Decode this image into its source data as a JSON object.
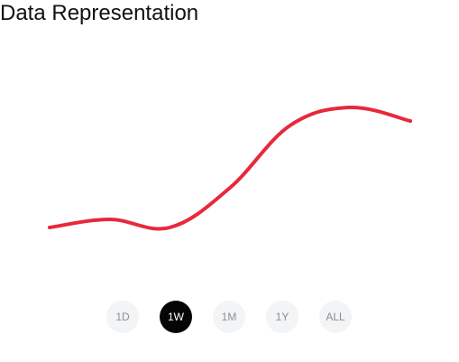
{
  "header": {
    "title": "Data Representation"
  },
  "chart_data": {
    "type": "line",
    "title": "",
    "xlabel": "",
    "ylabel": "",
    "grid": false,
    "x": [
      0,
      1,
      2,
      3,
      4,
      5,
      6
    ],
    "series": [
      {
        "values": [
          24.0,
          28.5,
          24.0,
          46.0,
          80.5,
          90.5,
          83.0
        ],
        "color": "#e8283c"
      }
    ],
    "xlim": [
      0,
      6
    ],
    "ylim": [
      0,
      120
    ]
  },
  "range_selector": {
    "selected": "1W",
    "options": [
      {
        "label": "1D",
        "active": false
      },
      {
        "label": "1W",
        "active": true
      },
      {
        "label": "1M",
        "active": false
      },
      {
        "label": "1Y",
        "active": false
      },
      {
        "label": "ALL",
        "active": false
      }
    ]
  },
  "colors": {
    "line": "#e8283c",
    "active_button_bg": "#050505",
    "inactive_button_bg": "#f3f4f6",
    "inactive_button_text": "#8a8f99"
  }
}
